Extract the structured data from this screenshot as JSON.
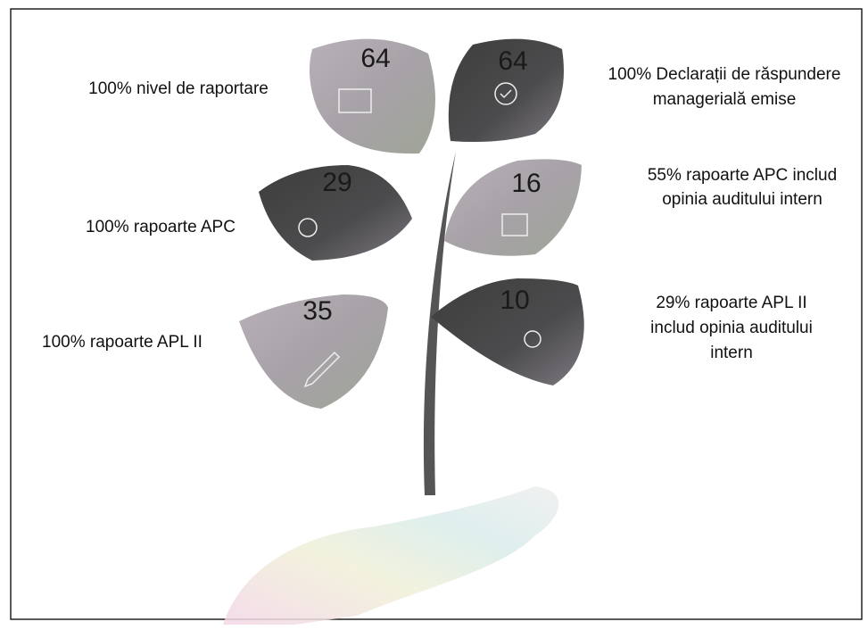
{
  "leaves": [
    {
      "number": 64,
      "label_lines": [
        "100% nivel de raportare"
      ]
    },
    {
      "number": 64,
      "label_lines": [
        "100% Declarații de răspundere",
        "managerială emise"
      ]
    },
    {
      "number": 29,
      "label_lines": [
        "100% rapoarte APC"
      ]
    },
    {
      "number": 16,
      "label_lines": [
        "55% rapoarte APC includ",
        "opinia auditului intern"
      ]
    },
    {
      "number": 35,
      "label_lines": [
        "100% rapoarte APL II"
      ]
    },
    {
      "number": 10,
      "label_lines": [
        "29% rapoarte APL II",
        "includ opinia auditului",
        "intern"
      ]
    }
  ]
}
